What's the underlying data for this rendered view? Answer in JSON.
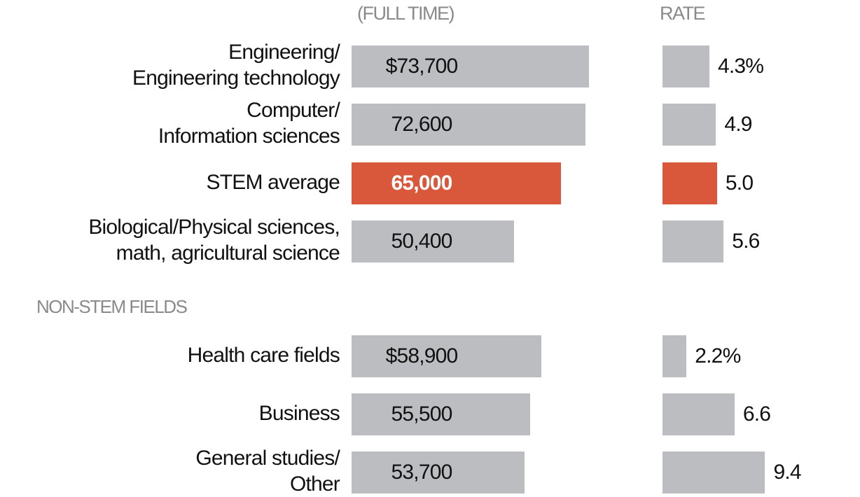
{
  "chart_data": {
    "type": "bar",
    "column_headers": {
      "salary": "(FULL TIME)",
      "rate": "RATE"
    },
    "section_label": "NON-STEM FIELDS",
    "colors": {
      "bar": "#bcbdc0",
      "highlight": "#d9573a"
    },
    "rows": [
      {
        "category": "Engineering/\nEngineering technology",
        "salary": 73700,
        "salary_label": "$73,700",
        "rate": 4.3,
        "rate_label": "4.3%",
        "highlight": false,
        "section": "stem"
      },
      {
        "category": "Computer/\nInformation sciences",
        "salary": 72600,
        "salary_label": "72,600",
        "rate": 4.9,
        "rate_label": "4.9",
        "highlight": false,
        "section": "stem"
      },
      {
        "category": "STEM average",
        "salary": 65000,
        "salary_label": "65,000",
        "rate": 5.0,
        "rate_label": "5.0",
        "highlight": true,
        "section": "stem"
      },
      {
        "category": "Biological/Physical sciences,\nmath, agricultural science",
        "salary": 50400,
        "salary_label": "50,400",
        "rate": 5.6,
        "rate_label": "5.6",
        "highlight": false,
        "section": "stem"
      },
      {
        "category": "Health care fields",
        "salary": 58900,
        "salary_label": "$58,900",
        "rate": 2.2,
        "rate_label": "2.2%",
        "highlight": false,
        "section": "non-stem"
      },
      {
        "category": "Business",
        "salary": 55500,
        "salary_label": "55,500",
        "rate": 6.6,
        "rate_label": "6.6",
        "highlight": false,
        "section": "non-stem"
      },
      {
        "category": "General studies/\nOther",
        "salary": 53700,
        "salary_label": "53,700",
        "rate": 9.4,
        "rate_label": "9.4",
        "highlight": false,
        "section": "non-stem"
      }
    ]
  }
}
